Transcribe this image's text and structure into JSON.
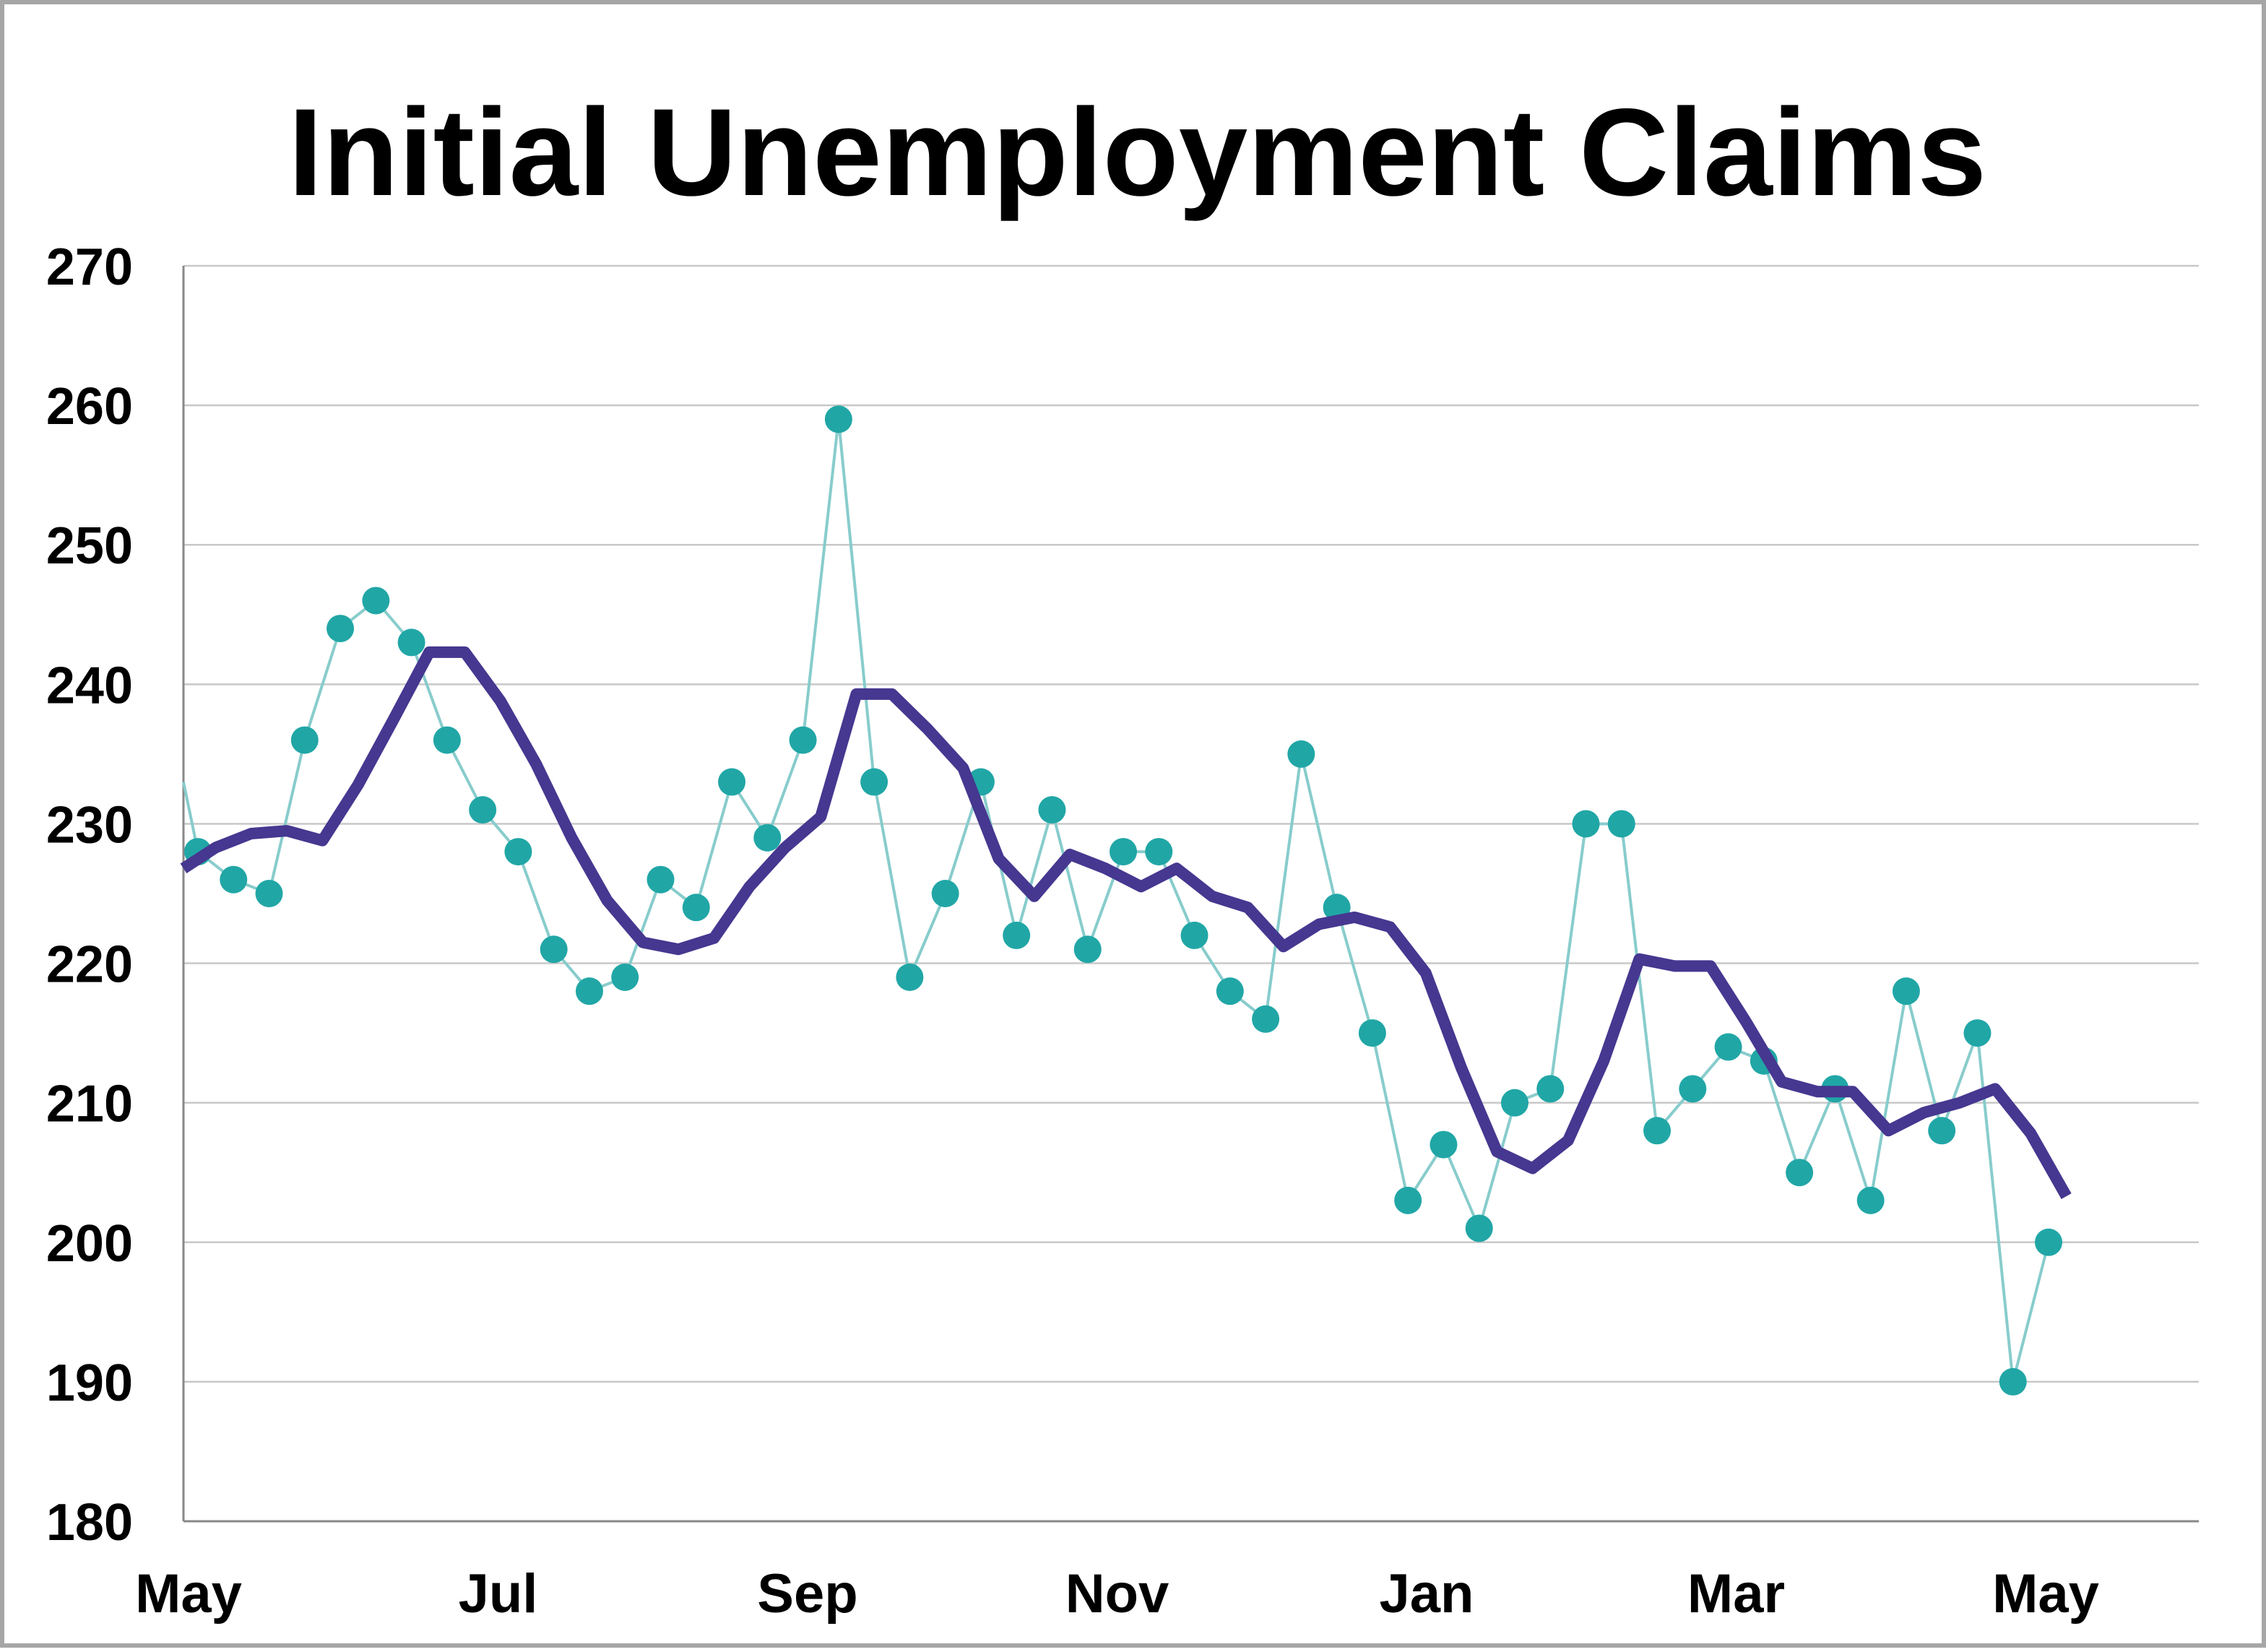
{
  "chart_data": {
    "type": "line",
    "title": "Initial Unemployment Claims",
    "xlabel": "",
    "ylabel": "",
    "ylim": [
      180,
      270
    ],
    "yticks": [
      180,
      190,
      200,
      210,
      220,
      230,
      240,
      250,
      260,
      270
    ],
    "xtick_labels": [
      "May",
      "Jul",
      "Sep",
      "Nov",
      "Jan",
      "Mar",
      "May"
    ],
    "grid": true,
    "legend": "none",
    "weeks": 53,
    "series": [
      {
        "style": "markers-thin-line",
        "color": "#21a6a6",
        "line_color": "#88cccc",
        "start_value": 233,
        "values": [
          228,
          226,
          225,
          236,
          244,
          246,
          243,
          236,
          231,
          228,
          221,
          218,
          219,
          226,
          224,
          233,
          229,
          236,
          259,
          233,
          219,
          225,
          233,
          222,
          231,
          221,
          228,
          228,
          222,
          218,
          216,
          235,
          224,
          215,
          203,
          207,
          201,
          210,
          211,
          230,
          230,
          208,
          211,
          214,
          213,
          205,
          211,
          203,
          218,
          208,
          215,
          190,
          200
        ]
      },
      {
        "style": "thick-line",
        "color": "#463790",
        "values": [
          226.8,
          228.3,
          229.3,
          229.5,
          228.8,
          232.8,
          237.5,
          242.3,
          242.3,
          238.8,
          234.3,
          229.0,
          224.5,
          221.5,
          221.0,
          221.8,
          225.5,
          228.3,
          230.5,
          239.3,
          239.3,
          236.8,
          234.0,
          227.5,
          224.8,
          227.8,
          226.8,
          225.5,
          226.8,
          224.8,
          224.0,
          221.2,
          222.8,
          223.3,
          222.6,
          219.3,
          212.5,
          206.5,
          205.3,
          207.3,
          213.0,
          220.3,
          219.8,
          219.8,
          215.8,
          211.5,
          210.8,
          210.8,
          208.0,
          209.3,
          210.0,
          211.0,
          207.8,
          203.3
        ]
      }
    ]
  }
}
